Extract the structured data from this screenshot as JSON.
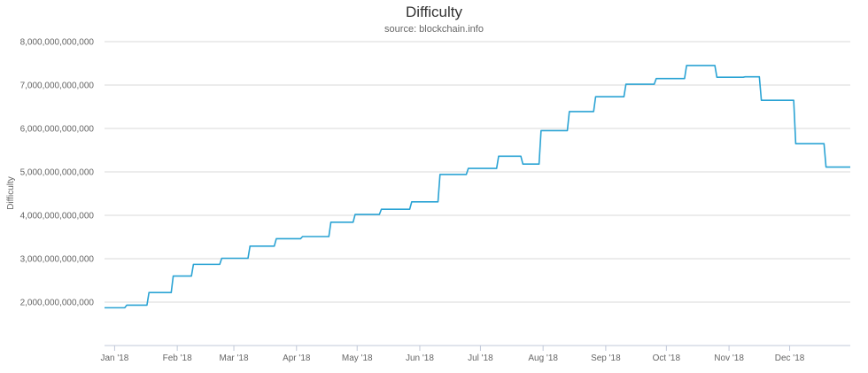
{
  "chart_data": {
    "type": "line",
    "title": "Difficulty",
    "subtitle": "source: blockchain.info",
    "ylabel": "Difficulty",
    "xlabel": "",
    "ylim": [
      1000000000000,
      8000000000000
    ],
    "yticks": [
      2000000000000,
      3000000000000,
      4000000000000,
      5000000000000,
      6000000000000,
      7000000000000,
      8000000000000
    ],
    "ytick_labels": [
      "2,000,000,000,000",
      "3,000,000,000,000",
      "4,000,000,000,000",
      "5,000,000,000,000",
      "6,000,000,000,000",
      "7,000,000,000,000",
      "8,000,000,000,000"
    ],
    "xlim": [
      "2017-12-27",
      "2018-12-31"
    ],
    "xtick_labels": [
      "Jan '18",
      "Feb '18",
      "Mar '18",
      "Apr '18",
      "May '18",
      "Jun '18",
      "Jul '18",
      "Aug '18",
      "Sep '18",
      "Oct '18",
      "Nov '18",
      "Dec '18"
    ],
    "xtick_dates": [
      "2018-01-01",
      "2018-02-01",
      "2018-03-01",
      "2018-04-01",
      "2018-05-01",
      "2018-06-01",
      "2018-07-01",
      "2018-08-01",
      "2018-09-01",
      "2018-10-01",
      "2018-11-01",
      "2018-12-01"
    ],
    "grid": true,
    "legend": "none",
    "line_color": "#2aa3d4",
    "series": [
      {
        "x": [
          "2017-12-27",
          "2018-01-06",
          "2018-01-07",
          "2018-01-17",
          "2018-01-18",
          "2018-01-29",
          "2018-01-30",
          "2018-02-08",
          "2018-02-09",
          "2018-02-22",
          "2018-02-23",
          "2018-03-08",
          "2018-03-09",
          "2018-03-21",
          "2018-03-22",
          "2018-04-03",
          "2018-04-04",
          "2018-04-17",
          "2018-04-18",
          "2018-04-29",
          "2018-04-30",
          "2018-05-12",
          "2018-05-13",
          "2018-05-27",
          "2018-05-28",
          "2018-06-10",
          "2018-06-11",
          "2018-06-24",
          "2018-06-25",
          "2018-07-09",
          "2018-07-10",
          "2018-07-21",
          "2018-07-22",
          "2018-07-30",
          "2018-07-31",
          "2018-08-13",
          "2018-08-14",
          "2018-08-26",
          "2018-08-27",
          "2018-09-10",
          "2018-09-11",
          "2018-09-25",
          "2018-09-26",
          "2018-10-10",
          "2018-10-11",
          "2018-10-25",
          "2018-10-26",
          "2018-11-08",
          "2018-11-09",
          "2018-11-16",
          "2018-11-17",
          "2018-12-03",
          "2018-12-04",
          "2018-12-18",
          "2018-12-19",
          "2018-12-31"
        ],
        "values": [
          1870000000000,
          1870000000000,
          1930000000000,
          1930000000000,
          2220000000000,
          2220000000000,
          2600000000000,
          2600000000000,
          2870000000000,
          2870000000000,
          3010000000000,
          3010000000000,
          3290000000000,
          3290000000000,
          3460000000000,
          3460000000000,
          3510000000000,
          3510000000000,
          3840000000000,
          3840000000000,
          4020000000000,
          4020000000000,
          4140000000000,
          4140000000000,
          4310000000000,
          4310000000000,
          4940000000000,
          4940000000000,
          5080000000000,
          5080000000000,
          5360000000000,
          5360000000000,
          5180000000000,
          5180000000000,
          5950000000000,
          5950000000000,
          6390000000000,
          6390000000000,
          6730000000000,
          6730000000000,
          7020000000000,
          7020000000000,
          7150000000000,
          7150000000000,
          7450000000000,
          7450000000000,
          7180000000000,
          7180000000000,
          7190000000000,
          7190000000000,
          6650000000000,
          6650000000000,
          5650000000000,
          5650000000000,
          5110000000000,
          5110000000000
        ]
      }
    ]
  }
}
